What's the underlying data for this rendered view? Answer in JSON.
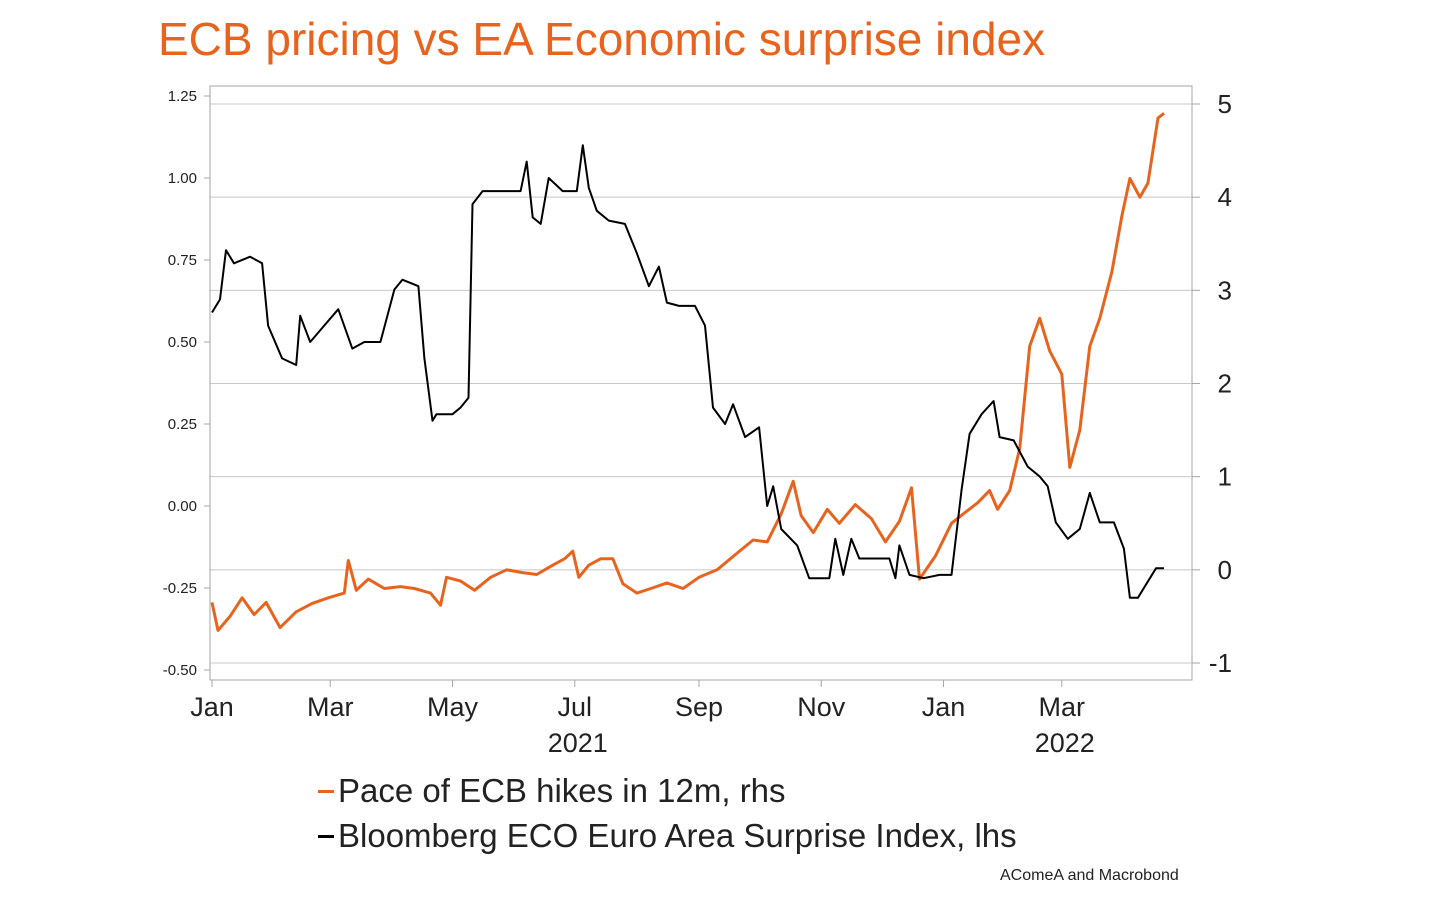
{
  "chart_data": {
    "type": "line",
    "title": "ECB pricing vs EA Economic surprise index",
    "source": "AComeA and Macrobond",
    "x_axis": {
      "range": [
        "2021-01-01",
        "2022-04-25"
      ],
      "month_ticks": [
        {
          "date": "2021-01-01",
          "label": "Jan"
        },
        {
          "date": "2021-03-01",
          "label": "Mar"
        },
        {
          "date": "2021-05-01",
          "label": "May"
        },
        {
          "date": "2021-07-01",
          "label": "Jul"
        },
        {
          "date": "2021-09-01",
          "label": "Sep"
        },
        {
          "date": "2021-11-01",
          "label": "Nov"
        },
        {
          "date": "2022-01-01",
          "label": "Jan"
        },
        {
          "date": "2022-03-01",
          "label": "Mar"
        }
      ],
      "year_labels": [
        {
          "date": "2021-07-01",
          "label": "2021"
        },
        {
          "date": "2022-03-01",
          "label": "2022"
        }
      ]
    },
    "y_left": {
      "range": [
        -0.5,
        1.25
      ],
      "ticks": [
        {
          "value": 1.25,
          "label": "1.25"
        },
        {
          "value": 1.0,
          "label": "1.00"
        },
        {
          "value": 0.75,
          "label": "0.75"
        },
        {
          "value": 0.5,
          "label": "0.50"
        },
        {
          "value": 0.25,
          "label": "0.25"
        },
        {
          "value": 0.0,
          "label": "0.00"
        },
        {
          "value": -0.25,
          "label": "-0.25"
        },
        {
          "value": -0.5,
          "label": "-0.50"
        }
      ]
    },
    "y_right": {
      "range": [
        -1,
        5
      ],
      "ticks": [
        {
          "value": 5,
          "label": "5"
        },
        {
          "value": 4,
          "label": "4"
        },
        {
          "value": 3,
          "label": "3"
        },
        {
          "value": 2,
          "label": "2"
        },
        {
          "value": 1,
          "label": "1"
        },
        {
          "value": 0,
          "label": "0"
        },
        {
          "value": -1,
          "label": "-1"
        }
      ]
    },
    "grid": "horizontal, right axis",
    "legend_position": "bottom",
    "series": [
      {
        "name": "Pace of ECB hikes in 12m, rhs",
        "axis": "right",
        "color": "#e8641e",
        "points": [
          [
            "2021-01-01",
            -0.35
          ],
          [
            "2021-01-04",
            -0.65
          ],
          [
            "2021-01-10",
            -0.5
          ],
          [
            "2021-01-16",
            -0.3
          ],
          [
            "2021-01-22",
            -0.48
          ],
          [
            "2021-01-28",
            -0.35
          ],
          [
            "2021-02-04",
            -0.62
          ],
          [
            "2021-02-12",
            -0.45
          ],
          [
            "2021-02-20",
            -0.36
          ],
          [
            "2021-02-28",
            -0.3
          ],
          [
            "2021-03-08",
            -0.25
          ],
          [
            "2021-03-10",
            0.1
          ],
          [
            "2021-03-14",
            -0.22
          ],
          [
            "2021-03-20",
            -0.1
          ],
          [
            "2021-03-28",
            -0.2
          ],
          [
            "2021-04-05",
            -0.18
          ],
          [
            "2021-04-12",
            -0.2
          ],
          [
            "2021-04-20",
            -0.25
          ],
          [
            "2021-04-25",
            -0.38
          ],
          [
            "2021-04-28",
            -0.08
          ],
          [
            "2021-05-05",
            -0.12
          ],
          [
            "2021-05-12",
            -0.22
          ],
          [
            "2021-05-20",
            -0.08
          ],
          [
            "2021-05-28",
            0.0
          ],
          [
            "2021-06-05",
            -0.03
          ],
          [
            "2021-06-12",
            -0.05
          ],
          [
            "2021-06-20",
            0.05
          ],
          [
            "2021-06-26",
            0.12
          ],
          [
            "2021-06-30",
            0.2
          ],
          [
            "2021-07-03",
            -0.08
          ],
          [
            "2021-07-08",
            0.05
          ],
          [
            "2021-07-14",
            0.12
          ],
          [
            "2021-07-20",
            0.12
          ],
          [
            "2021-07-25",
            -0.15
          ],
          [
            "2021-08-01",
            -0.25
          ],
          [
            "2021-08-08",
            -0.2
          ],
          [
            "2021-08-16",
            -0.14
          ],
          [
            "2021-08-24",
            -0.2
          ],
          [
            "2021-09-01",
            -0.08
          ],
          [
            "2021-09-10",
            0.0
          ],
          [
            "2021-09-20",
            0.18
          ],
          [
            "2021-09-28",
            0.32
          ],
          [
            "2021-10-05",
            0.3
          ],
          [
            "2021-10-12",
            0.6
          ],
          [
            "2021-10-18",
            0.95
          ],
          [
            "2021-10-22",
            0.58
          ],
          [
            "2021-10-28",
            0.4
          ],
          [
            "2021-11-04",
            0.65
          ],
          [
            "2021-11-10",
            0.5
          ],
          [
            "2021-11-18",
            0.7
          ],
          [
            "2021-11-26",
            0.55
          ],
          [
            "2021-12-03",
            0.3
          ],
          [
            "2021-12-10",
            0.52
          ],
          [
            "2021-12-16",
            0.88
          ],
          [
            "2021-12-20",
            -0.1
          ],
          [
            "2021-12-28",
            0.15
          ],
          [
            "2022-01-05",
            0.5
          ],
          [
            "2022-01-12",
            0.62
          ],
          [
            "2022-01-18",
            0.72
          ],
          [
            "2022-01-24",
            0.85
          ],
          [
            "2022-01-28",
            0.65
          ],
          [
            "2022-02-03",
            0.85
          ],
          [
            "2022-02-08",
            1.3
          ],
          [
            "2022-02-13",
            2.4
          ],
          [
            "2022-02-18",
            2.7
          ],
          [
            "2022-02-23",
            2.35
          ],
          [
            "2022-03-01",
            2.1
          ],
          [
            "2022-03-05",
            1.1
          ],
          [
            "2022-03-10",
            1.5
          ],
          [
            "2022-03-15",
            2.4
          ],
          [
            "2022-03-20",
            2.7
          ],
          [
            "2022-03-26",
            3.2
          ],
          [
            "2022-03-31",
            3.8
          ],
          [
            "2022-04-04",
            4.2
          ],
          [
            "2022-04-09",
            4.0
          ],
          [
            "2022-04-13",
            4.15
          ],
          [
            "2022-04-18",
            4.85
          ],
          [
            "2022-04-21",
            4.9
          ]
        ]
      },
      {
        "name": "Bloomberg ECO Euro Area Surprise Index, lhs",
        "axis": "left",
        "color": "#000000",
        "points": [
          [
            "2021-01-01",
            0.59
          ],
          [
            "2021-01-05",
            0.63
          ],
          [
            "2021-01-08",
            0.78
          ],
          [
            "2021-01-12",
            0.74
          ],
          [
            "2021-01-20",
            0.76
          ],
          [
            "2021-01-26",
            0.74
          ],
          [
            "2021-01-29",
            0.55
          ],
          [
            "2021-02-05",
            0.45
          ],
          [
            "2021-02-12",
            0.43
          ],
          [
            "2021-02-14",
            0.58
          ],
          [
            "2021-02-19",
            0.5
          ],
          [
            "2021-02-26",
            0.55
          ],
          [
            "2021-03-05",
            0.6
          ],
          [
            "2021-03-12",
            0.48
          ],
          [
            "2021-03-18",
            0.5
          ],
          [
            "2021-03-26",
            0.5
          ],
          [
            "2021-04-02",
            0.66
          ],
          [
            "2021-04-06",
            0.69
          ],
          [
            "2021-04-14",
            0.67
          ],
          [
            "2021-04-17",
            0.45
          ],
          [
            "2021-04-21",
            0.26
          ],
          [
            "2021-04-23",
            0.28
          ],
          [
            "2021-05-01",
            0.28
          ],
          [
            "2021-05-05",
            0.3
          ],
          [
            "2021-05-09",
            0.33
          ],
          [
            "2021-05-11",
            0.92
          ],
          [
            "2021-05-16",
            0.96
          ],
          [
            "2021-05-24",
            0.96
          ],
          [
            "2021-06-04",
            0.96
          ],
          [
            "2021-06-07",
            1.05
          ],
          [
            "2021-06-10",
            0.88
          ],
          [
            "2021-06-14",
            0.86
          ],
          [
            "2021-06-18",
            1.0
          ],
          [
            "2021-06-25",
            0.96
          ],
          [
            "2021-07-02",
            0.96
          ],
          [
            "2021-07-05",
            1.1
          ],
          [
            "2021-07-08",
            0.97
          ],
          [
            "2021-07-12",
            0.9
          ],
          [
            "2021-07-18",
            0.87
          ],
          [
            "2021-07-26",
            0.86
          ],
          [
            "2021-08-01",
            0.77
          ],
          [
            "2021-08-07",
            0.67
          ],
          [
            "2021-08-12",
            0.73
          ],
          [
            "2021-08-16",
            0.62
          ],
          [
            "2021-08-22",
            0.61
          ],
          [
            "2021-08-30",
            0.61
          ],
          [
            "2021-09-04",
            0.55
          ],
          [
            "2021-09-08",
            0.3
          ],
          [
            "2021-09-14",
            0.25
          ],
          [
            "2021-09-18",
            0.31
          ],
          [
            "2021-09-24",
            0.21
          ],
          [
            "2021-10-01",
            0.24
          ],
          [
            "2021-10-05",
            0.0
          ],
          [
            "2021-10-08",
            0.06
          ],
          [
            "2021-10-12",
            -0.07
          ],
          [
            "2021-10-20",
            -0.12
          ],
          [
            "2021-10-26",
            -0.22
          ],
          [
            "2021-11-05",
            -0.22
          ],
          [
            "2021-11-08",
            -0.1
          ],
          [
            "2021-11-12",
            -0.21
          ],
          [
            "2021-11-16",
            -0.1
          ],
          [
            "2021-11-20",
            -0.16
          ],
          [
            "2021-11-28",
            -0.16
          ],
          [
            "2021-12-05",
            -0.16
          ],
          [
            "2021-12-08",
            -0.22
          ],
          [
            "2021-12-10",
            -0.12
          ],
          [
            "2021-12-15",
            -0.21
          ],
          [
            "2021-12-22",
            -0.22
          ],
          [
            "2021-12-30",
            -0.21
          ],
          [
            "2022-01-05",
            -0.21
          ],
          [
            "2022-01-10",
            0.05
          ],
          [
            "2022-01-14",
            0.22
          ],
          [
            "2022-01-20",
            0.28
          ],
          [
            "2022-01-26",
            0.32
          ],
          [
            "2022-01-29",
            0.21
          ],
          [
            "2022-02-05",
            0.2
          ],
          [
            "2022-02-12",
            0.12
          ],
          [
            "2022-02-18",
            0.09
          ],
          [
            "2022-02-22",
            0.06
          ],
          [
            "2022-02-26",
            -0.05
          ],
          [
            "2022-03-04",
            -0.1
          ],
          [
            "2022-03-10",
            -0.07
          ],
          [
            "2022-03-15",
            0.04
          ],
          [
            "2022-03-20",
            -0.05
          ],
          [
            "2022-03-27",
            -0.05
          ],
          [
            "2022-04-01",
            -0.13
          ],
          [
            "2022-04-04",
            -0.28
          ],
          [
            "2022-04-08",
            -0.28
          ],
          [
            "2022-04-12",
            -0.24
          ],
          [
            "2022-04-17",
            -0.19
          ],
          [
            "2022-04-21",
            -0.19
          ]
        ]
      }
    ]
  }
}
